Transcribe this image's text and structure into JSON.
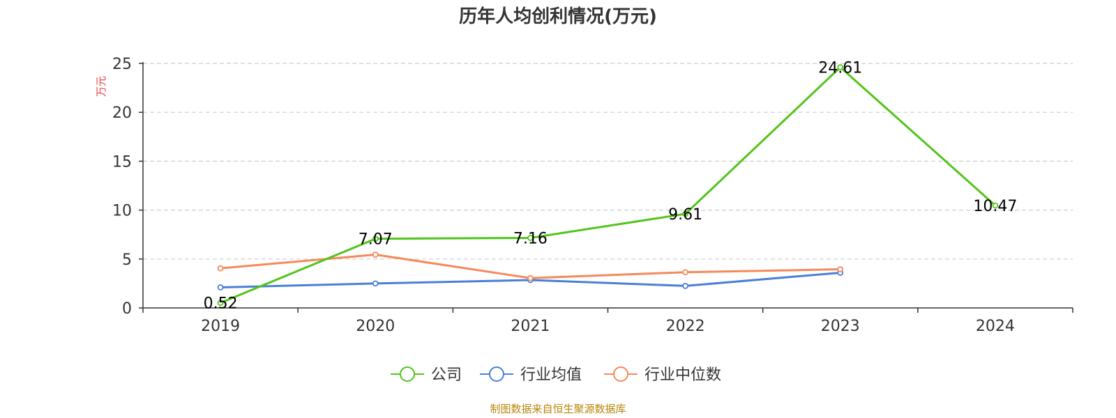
{
  "chart_data": {
    "type": "line",
    "title": "历年人均创利情况(万元)",
    "ylabel": "万元",
    "xlabel": "",
    "categories": [
      "2019",
      "2020",
      "2021",
      "2022",
      "2023",
      "2024"
    ],
    "ylim": [
      0,
      25
    ],
    "yticks": [
      0,
      5,
      10,
      15,
      20,
      25
    ],
    "grid": true,
    "legend_position": "bottom",
    "series": [
      {
        "name": "公司",
        "color": "#52c41a",
        "values": [
          0.52,
          7.07,
          7.16,
          9.61,
          24.61,
          10.47
        ],
        "labels": [
          "0.52",
          "7.07",
          "7.16",
          "9.61",
          "24.61",
          "10.47"
        ]
      },
      {
        "name": "行业均值",
        "color": "#4a7fd8",
        "values": [
          2.1,
          2.5,
          2.85,
          2.25,
          3.6,
          null
        ]
      },
      {
        "name": "行业中位数",
        "color": "#f5895a",
        "values": [
          4.05,
          5.45,
          3.05,
          3.65,
          3.95,
          null
        ]
      }
    ]
  },
  "footer": {
    "source": "制图数据来自恒生聚源数据库"
  }
}
